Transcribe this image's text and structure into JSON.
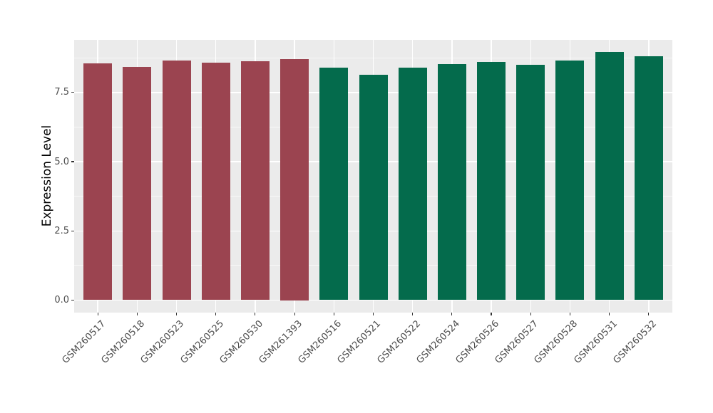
{
  "chart_data": {
    "type": "bar",
    "title": "",
    "xlabel": "",
    "ylabel": "Expression Level",
    "categories": [
      "GSM260517",
      "GSM260518",
      "GSM260523",
      "GSM260525",
      "GSM260530",
      "GSM261393",
      "GSM260516",
      "GSM260521",
      "GSM260522",
      "GSM260524",
      "GSM260526",
      "GSM260527",
      "GSM260528",
      "GSM260531",
      "GSM260532"
    ],
    "values": [
      8.55,
      8.43,
      8.66,
      8.58,
      8.63,
      8.71,
      8.39,
      8.14,
      8.4,
      8.52,
      8.61,
      8.5,
      8.65,
      8.95,
      8.82
    ],
    "colors": [
      "#9B4450",
      "#9B4450",
      "#9B4450",
      "#9B4450",
      "#9B4450",
      "#9B4450",
      "#046B4C",
      "#046B4C",
      "#046B4C",
      "#046B4C",
      "#046B4C",
      "#046B4C",
      "#046B4C",
      "#046B4C",
      "#046B4C"
    ],
    "group_colors": {
      "maroon": "#9B4450",
      "green": "#046B4C"
    },
    "yticks": [
      0.0,
      2.5,
      5.0,
      7.5
    ],
    "ytick_labels": [
      "0.0",
      "2.5",
      "5.0",
      "7.5"
    ],
    "minor_yticks": [
      1.25,
      3.75,
      6.25,
      8.75
    ],
    "ylim": [
      -0.45,
      9.4
    ],
    "x_tick_rotation": 45,
    "legend": "none",
    "grid": "major-and-minor",
    "panel_background": "#EBEBEB",
    "gridline_color": "#FFFFFF",
    "tick_label_color": "#4D4D4D",
    "axis_title_color": "#000000"
  }
}
